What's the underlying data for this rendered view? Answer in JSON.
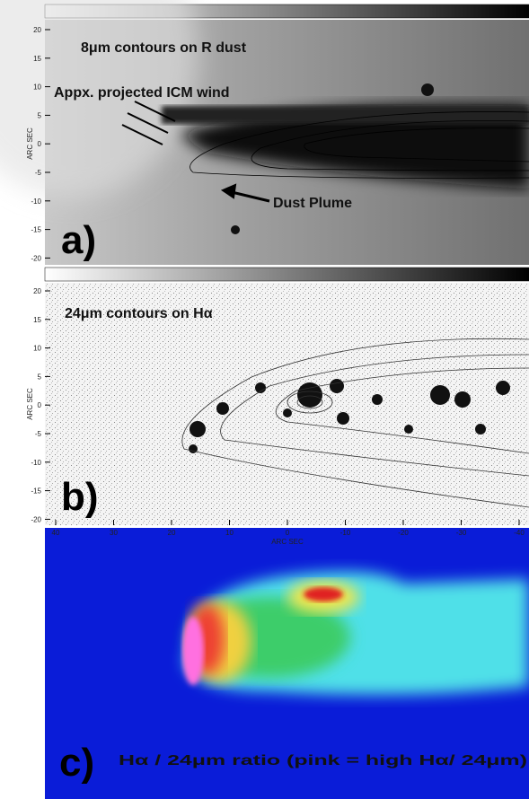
{
  "panels": [
    {
      "label": "a)",
      "title": "8μm contours on R dust",
      "annotations": [
        "Appx. projected ICM wind",
        "Dust Plume"
      ],
      "axis_label": "ARC SEC",
      "yticks": [
        20,
        15,
        10,
        5,
        0,
        -5,
        -10,
        -15,
        -20
      ]
    },
    {
      "label": "b)",
      "title": "24μm contours on Hα",
      "axis_label": "ARC SEC",
      "yticks": [
        20,
        15,
        10,
        5,
        0,
        -5,
        -10,
        -15,
        -20
      ],
      "xticks": [
        40,
        30,
        20,
        10,
        0,
        -10,
        -20,
        -30,
        -40
      ],
      "x_axis_label": "ARC SEC"
    },
    {
      "label": "c)",
      "title": "Hα / 24μm ratio (pink = high Hα/ 24μm)"
    }
  ]
}
